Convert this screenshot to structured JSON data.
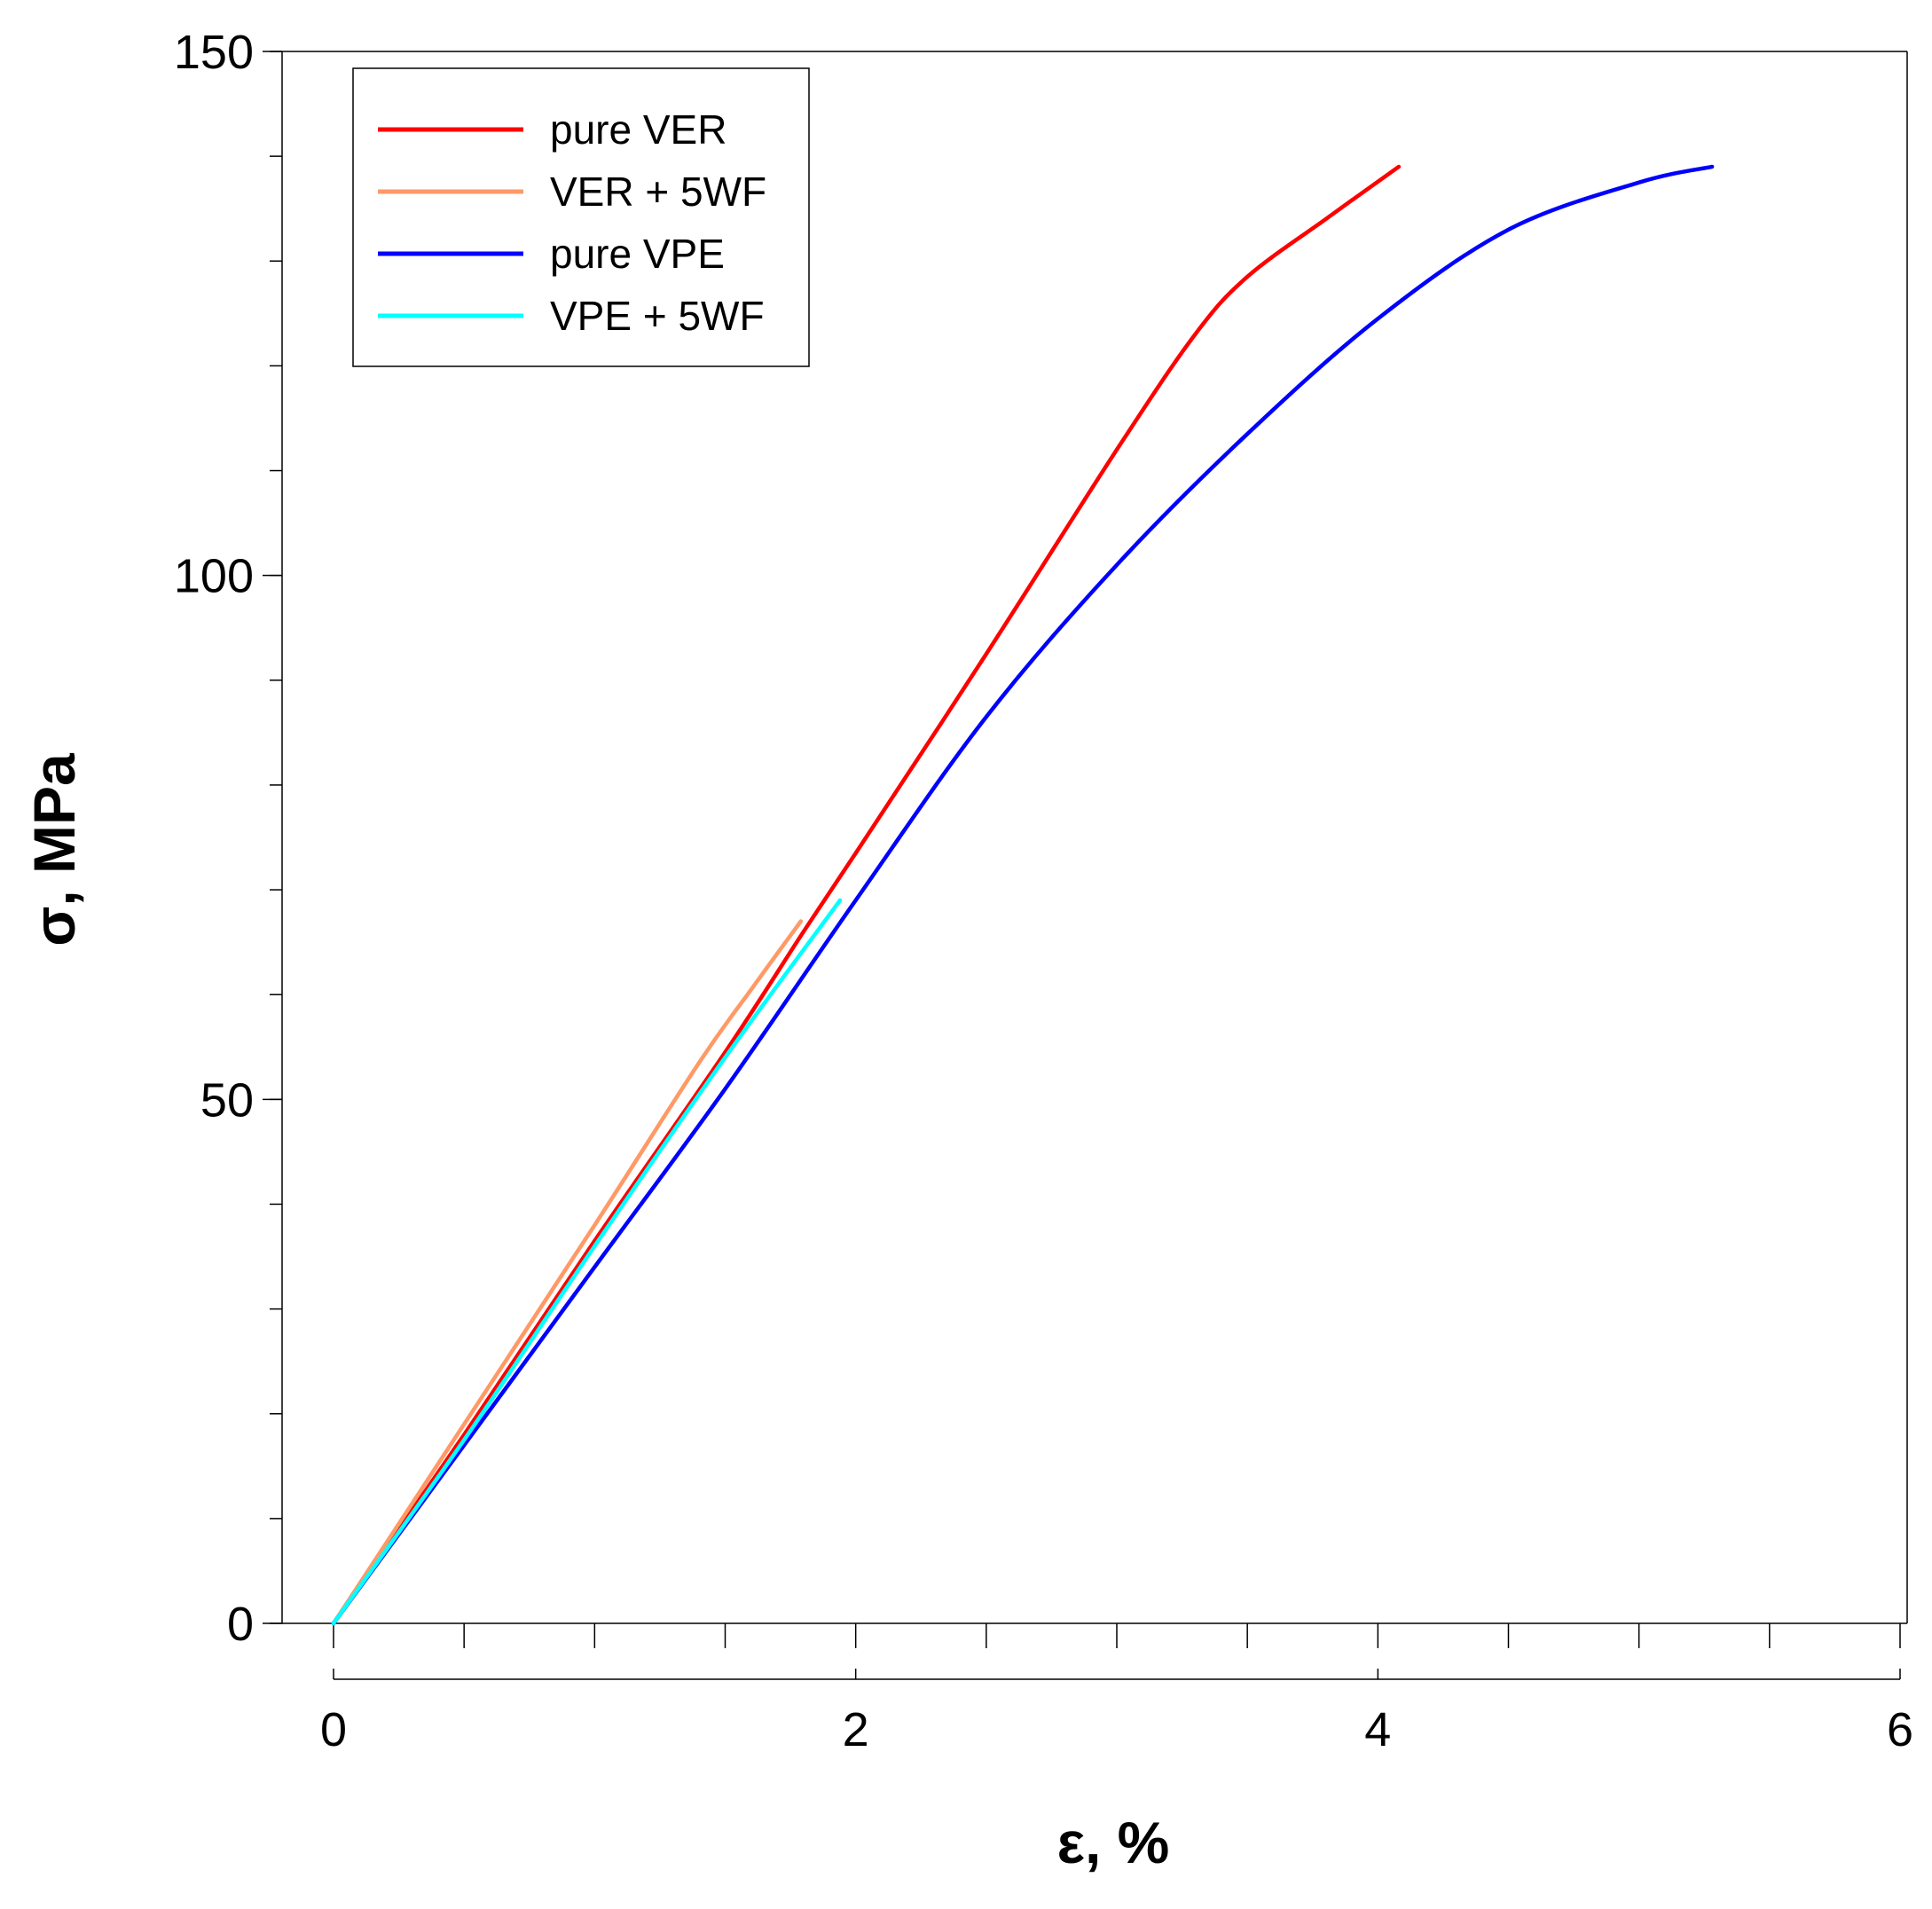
{
  "chart_data": {
    "type": "line",
    "xlabel": "ε, %",
    "ylabel": "σ, MPa",
    "xlim": [
      0,
      6
    ],
    "ylim": [
      0,
      150
    ],
    "x_ticks": [
      0,
      2,
      4,
      6
    ],
    "x_minor_step": 0.5,
    "y_ticks": [
      0,
      50,
      100,
      150
    ],
    "y_minor_step": 10,
    "grid": false,
    "legend_position": "top-left",
    "series": [
      {
        "name": "pure VER",
        "color": "#ff0000",
        "points": [
          [
            0,
            0
          ],
          [
            0.5,
            18
          ],
          [
            1,
            36.5
          ],
          [
            1.5,
            54.5
          ],
          [
            1.8,
            66
          ],
          [
            2,
            73.5
          ],
          [
            2.5,
            92.5
          ],
          [
            3,
            112
          ],
          [
            3.3,
            123
          ],
          [
            3.5,
            128.5
          ],
          [
            3.8,
            134
          ],
          [
            4.08,
            139
          ]
        ]
      },
      {
        "name": "VER + 5WF",
        "color": "#ff9966",
        "points": [
          [
            0,
            0
          ],
          [
            0.5,
            19
          ],
          [
            1,
            38
          ],
          [
            1.4,
            53.5
          ],
          [
            1.6,
            60.5
          ],
          [
            1.79,
            67
          ]
        ]
      },
      {
        "name": "pure VPE",
        "color": "#0000ff",
        "points": [
          [
            0,
            0
          ],
          [
            0.5,
            17
          ],
          [
            1,
            34
          ],
          [
            1.5,
            51
          ],
          [
            2,
            69
          ],
          [
            2.5,
            86.5
          ],
          [
            3,
            101
          ],
          [
            3.5,
            113.5
          ],
          [
            4,
            124.5
          ],
          [
            4.5,
            133
          ],
          [
            5,
            137.5
          ],
          [
            5.28,
            139
          ]
        ]
      },
      {
        "name": "VPE + 5WF",
        "color": "#00ffff",
        "points": [
          [
            0,
            0
          ],
          [
            0.5,
            17.5
          ],
          [
            1,
            36
          ],
          [
            1.5,
            54
          ],
          [
            1.94,
            69
          ]
        ]
      }
    ]
  }
}
